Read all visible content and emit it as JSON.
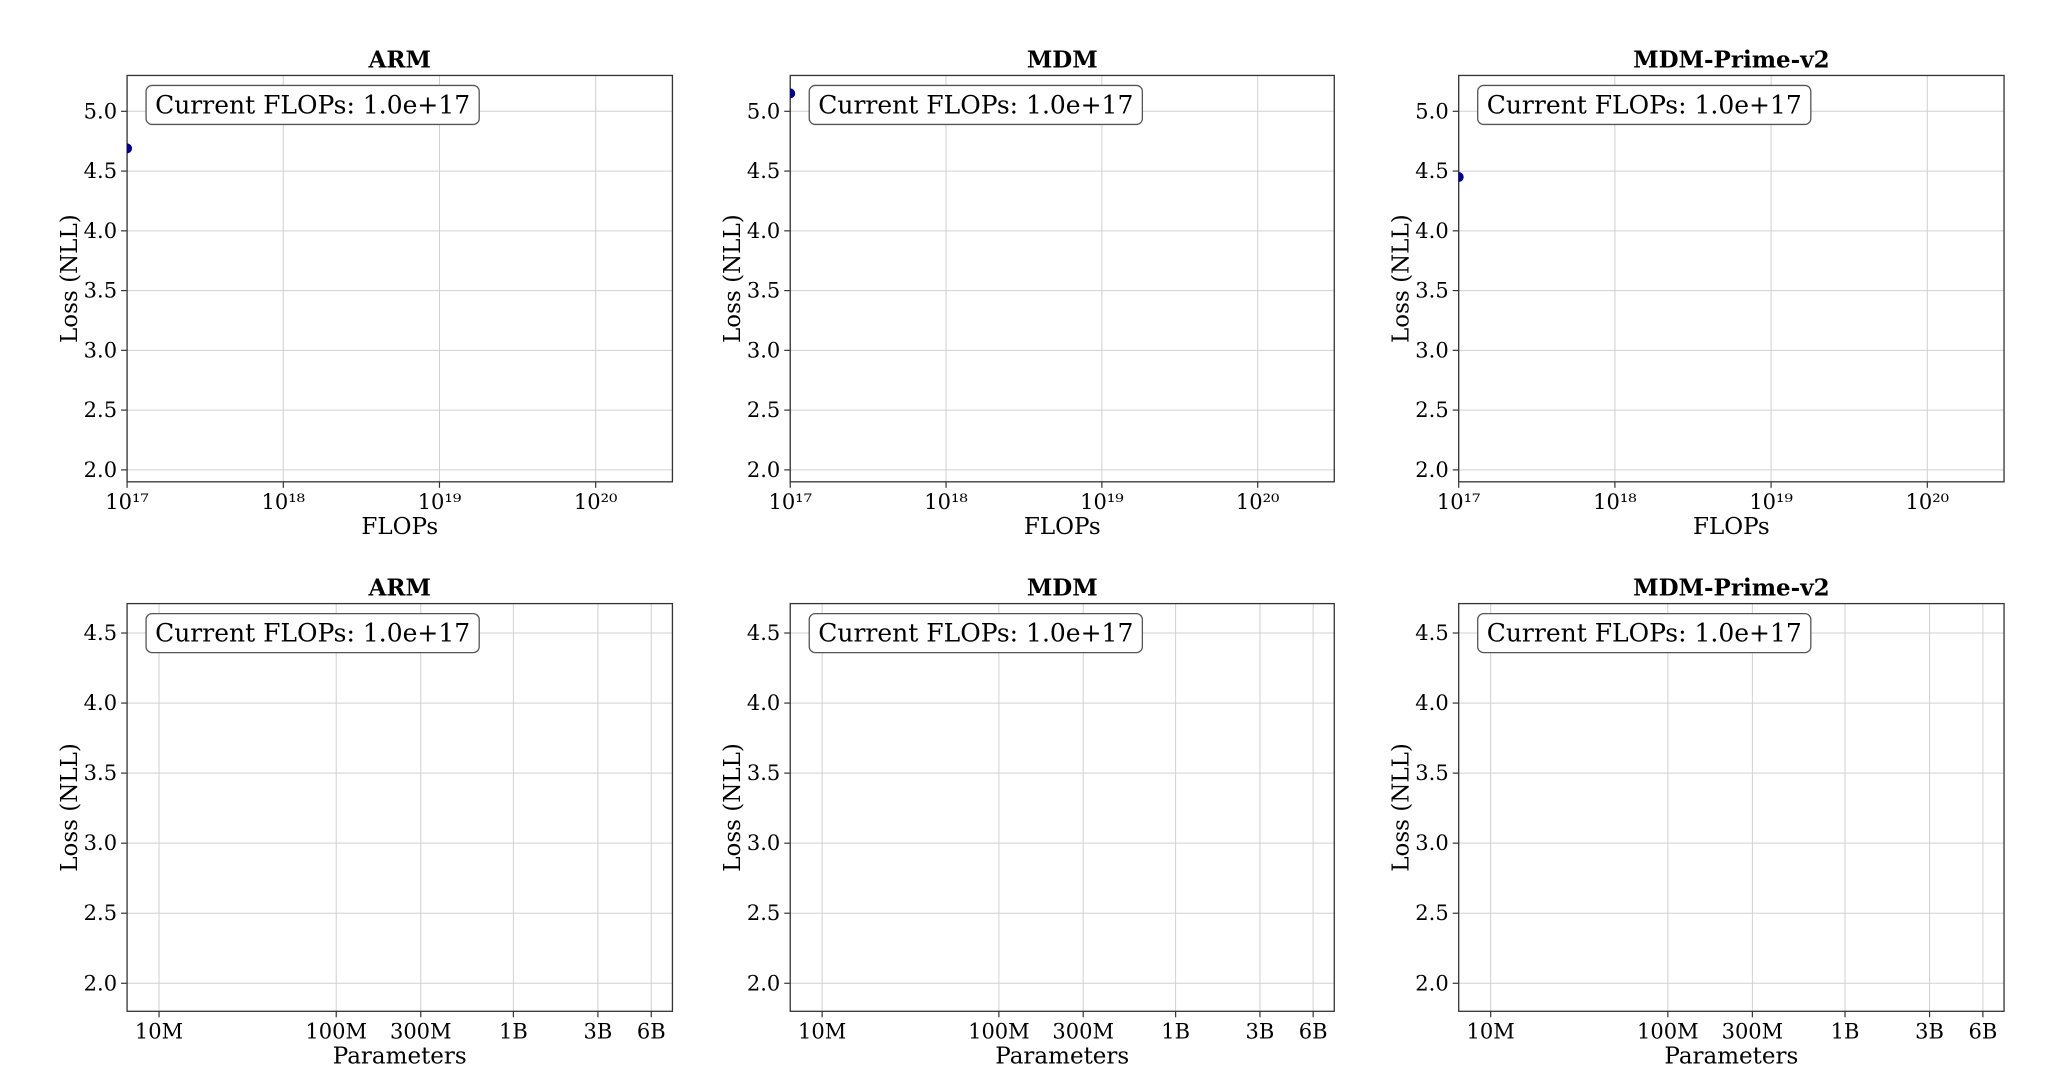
{
  "chart_data": [
    {
      "type": "scatter",
      "title": "ARM",
      "x_label": "FLOPs",
      "y_label": "Loss (NLL)",
      "annotation": "Current FLOPs: 1.0e+17",
      "xlog": true,
      "grid": true,
      "color": "#00008b",
      "xlim": [
        1e+17,
        3.1e+20
      ],
      "ylim": [
        1.9,
        5.3
      ],
      "xticks": [
        {
          "value": 1e+17,
          "label": "10¹⁷"
        },
        {
          "value": 1e+18,
          "label": "10¹⁸"
        },
        {
          "value": 1e+19,
          "label": "10¹⁹"
        },
        {
          "value": 1e+20,
          "label": "10²⁰"
        }
      ],
      "yticks": [
        {
          "value": 2,
          "label": "2.0"
        },
        2.5,
        {
          "value": 3,
          "label": "3.0"
        },
        3.5,
        {
          "value": 4,
          "label": "4.0"
        },
        4.5,
        {
          "value": 5,
          "label": "5.0"
        }
      ],
      "x": [
        1e+17
      ],
      "y": [
        4.69
      ]
    },
    {
      "type": "scatter",
      "title": "MDM",
      "x_label": "FLOPs",
      "y_label": "Loss (NLL)",
      "annotation": "Current FLOPs: 1.0e+17",
      "xlog": true,
      "grid": true,
      "color": "#00008b",
      "xlim": [
        1e+17,
        3.1e+20
      ],
      "ylim": [
        1.9,
        5.3
      ],
      "xticks": [
        {
          "value": 1e+17,
          "label": "10¹⁷"
        },
        {
          "value": 1e+18,
          "label": "10¹⁸"
        },
        {
          "value": 1e+19,
          "label": "10¹⁹"
        },
        {
          "value": 1e+20,
          "label": "10²⁰"
        }
      ],
      "yticks": [
        {
          "value": 2,
          "label": "2.0"
        },
        2.5,
        {
          "value": 3,
          "label": "3.0"
        },
        3.5,
        {
          "value": 4,
          "label": "4.0"
        },
        4.5,
        {
          "value": 5,
          "label": "5.0"
        }
      ],
      "x": [
        1e+17
      ],
      "y": [
        5.15
      ]
    },
    {
      "type": "scatter",
      "title": "MDM-Prime-v2",
      "x_label": "FLOPs",
      "y_label": "Loss (NLL)",
      "annotation": "Current FLOPs: 1.0e+17",
      "xlog": true,
      "grid": true,
      "color": "#00008b",
      "xlim": [
        1e+17,
        3.1e+20
      ],
      "ylim": [
        1.9,
        5.3
      ],
      "xticks": [
        {
          "value": 1e+17,
          "label": "10¹⁷"
        },
        {
          "value": 1e+18,
          "label": "10¹⁸"
        },
        {
          "value": 1e+19,
          "label": "10¹⁹"
        },
        {
          "value": 1e+20,
          "label": "10²⁰"
        }
      ],
      "yticks": [
        {
          "value": 2,
          "label": "2.0"
        },
        2.5,
        {
          "value": 3,
          "label": "3.0"
        },
        3.5,
        {
          "value": 4,
          "label": "4.0"
        },
        4.5,
        {
          "value": 5,
          "label": "5.0"
        }
      ],
      "x": [
        1e+17
      ],
      "y": [
        4.45
      ]
    },
    {
      "type": "scatter",
      "title": "ARM",
      "x_label": "Parameters",
      "y_label": "Loss (NLL)",
      "annotation": "Current FLOPs: 1.0e+17",
      "xlog": true,
      "grid": true,
      "xlim": [
        6600000.0,
        7900000000.0
      ],
      "ylim": [
        1.8,
        4.71
      ],
      "xticks": [
        {
          "value": 10000000.0,
          "label": "10M"
        },
        {
          "value": 100000000.0,
          "label": "100M"
        },
        {
          "value": 300000000.0,
          "label": "300M"
        },
        {
          "value": 1000000000.0,
          "label": "1B"
        },
        {
          "value": 3000000000.0,
          "label": "3B"
        },
        {
          "value": 6000000000.0,
          "label": "6B"
        }
      ],
      "yticks": [
        {
          "value": 2,
          "label": "2.0"
        },
        2.5,
        {
          "value": 3,
          "label": "3.0"
        },
        3.5,
        {
          "value": 4,
          "label": "4.0"
        },
        4.5
      ]
    },
    {
      "type": "scatter",
      "title": "MDM",
      "x_label": "Parameters",
      "y_label": "Loss (NLL)",
      "annotation": "Current FLOPs: 1.0e+17",
      "xlog": true,
      "grid": true,
      "xlim": [
        6600000.0,
        7900000000.0
      ],
      "ylim": [
        1.8,
        4.71
      ],
      "xticks": [
        {
          "value": 10000000.0,
          "label": "10M"
        },
        {
          "value": 100000000.0,
          "label": "100M"
        },
        {
          "value": 300000000.0,
          "label": "300M"
        },
        {
          "value": 1000000000.0,
          "label": "1B"
        },
        {
          "value": 3000000000.0,
          "label": "3B"
        },
        {
          "value": 6000000000.0,
          "label": "6B"
        }
      ],
      "yticks": [
        {
          "value": 2,
          "label": "2.0"
        },
        2.5,
        {
          "value": 3,
          "label": "3.0"
        },
        3.5,
        {
          "value": 4,
          "label": "4.0"
        },
        4.5
      ]
    },
    {
      "type": "scatter",
      "title": "MDM-Prime-v2",
      "x_label": "Parameters",
      "y_label": "Loss (NLL)",
      "annotation": "Current FLOPs: 1.0e+17",
      "xlog": true,
      "grid": true,
      "xlim": [
        6600000.0,
        7900000000.0
      ],
      "ylim": [
        1.8,
        4.71
      ],
      "xticks": [
        {
          "value": 10000000.0,
          "label": "10M"
        },
        {
          "value": 100000000.0,
          "label": "100M"
        },
        {
          "value": 300000000.0,
          "label": "300M"
        },
        {
          "value": 1000000000.0,
          "label": "1B"
        },
        {
          "value": 3000000000.0,
          "label": "3B"
        },
        {
          "value": 6000000000.0,
          "label": "6B"
        }
      ],
      "yticks": [
        {
          "value": 2,
          "label": "2.0"
        },
        2.5,
        {
          "value": 3,
          "label": "3.0"
        },
        3.5,
        {
          "value": 4,
          "label": "4.0"
        },
        4.5
      ]
    }
  ]
}
